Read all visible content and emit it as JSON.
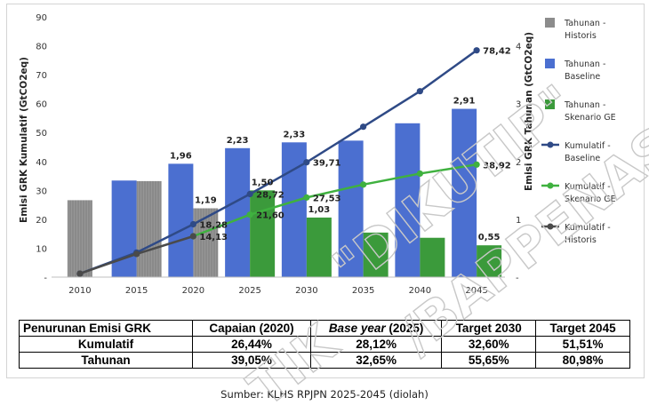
{
  "chart_data": {
    "type": "bar+line",
    "categories": [
      "2010",
      "2015",
      "2020",
      "2025",
      "2030",
      "2035",
      "2040",
      "2045"
    ],
    "y_left": {
      "title": "Emisi GRK Kumulatif (GtCO2eq)",
      "range": [
        0,
        90
      ],
      "ticks": [
        "-",
        "10",
        "20",
        "30",
        "40",
        "50",
        "60",
        "70",
        "80",
        "90"
      ]
    },
    "y_right": {
      "title": "Emisi GRK Tahunan (GtCO2eq)",
      "range": [
        0,
        4.5
      ],
      "ticks": [
        "-",
        "1",
        "2",
        "3",
        "4"
      ]
    },
    "bar_series": [
      {
        "name": "Tahunan - Historis",
        "color": "#8c8c8c",
        "values": [
          1.33,
          1.66,
          1.19,
          null,
          null,
          null,
          null,
          null
        ]
      },
      {
        "name": "Tahunan - Baseline",
        "color": "#4b6fd0",
        "values": [
          null,
          1.67,
          1.96,
          2.23,
          2.33,
          2.36,
          2.66,
          2.91
        ]
      },
      {
        "name": "Tahunan - Skenario GE",
        "color": "#3b9a3b",
        "values": [
          null,
          null,
          null,
          1.5,
          1.03,
          0.77,
          0.68,
          0.55
        ]
      }
    ],
    "line_series": [
      {
        "name": "Kumulatif - Baseline",
        "color": "#2f4a86",
        "values": [
          1.2,
          8.5,
          18.28,
          28.72,
          39.71,
          52.0,
          64.3,
          78.42
        ]
      },
      {
        "name": "Kumulatif - Skenario GE",
        "color": "#3fb13f",
        "values": [
          null,
          null,
          14.13,
          21.6,
          27.53,
          32.0,
          35.8,
          38.92
        ]
      },
      {
        "name": "Kumulatif - Historis",
        "color": "#4a4a4a",
        "values": [
          1.2,
          8.0,
          14.13,
          null,
          null,
          null,
          null,
          null
        ]
      }
    ],
    "bar_labels": [
      {
        "series": 1,
        "index": 2,
        "text": "1,96"
      },
      {
        "series": 1,
        "index": 3,
        "text": "2,23"
      },
      {
        "series": 1,
        "index": 4,
        "text": "2,33"
      },
      {
        "series": 1,
        "index": 7,
        "text": "2,91"
      },
      {
        "series": 0,
        "index": 2,
        "text": "1,19"
      },
      {
        "series": 2,
        "index": 3,
        "text": "1,50"
      },
      {
        "series": 2,
        "index": 4,
        "text": "1,03"
      },
      {
        "series": 2,
        "index": 7,
        "text": "0,55"
      }
    ],
    "line_labels": [
      {
        "series": 0,
        "index": 2,
        "text": "18,28"
      },
      {
        "series": 0,
        "index": 3,
        "text": "28,72"
      },
      {
        "series": 0,
        "index": 4,
        "text": "39,71"
      },
      {
        "series": 0,
        "index": 7,
        "text": "78,42"
      },
      {
        "series": 1,
        "index": 2,
        "text": "14,13"
      },
      {
        "series": 1,
        "index": 3,
        "text": "21,60"
      },
      {
        "series": 1,
        "index": 4,
        "text": "27,53"
      },
      {
        "series": 1,
        "index": 7,
        "text": "38,92"
      }
    ],
    "legend": [
      {
        "name": "Tahunan - Historis",
        "kind": "bar",
        "color": "#8c8c8c"
      },
      {
        "name": "Tahunan - Baseline",
        "kind": "bar",
        "color": "#4b6fd0"
      },
      {
        "name": "Tahunan - Skenario GE",
        "kind": "bar",
        "color": "#3b9a3b"
      },
      {
        "name": "Kumulatif - Baseline",
        "kind": "line",
        "color": "#2f4a86"
      },
      {
        "name": "Kumulatif - Skenario GE",
        "kind": "line",
        "color": "#3fb13f"
      },
      {
        "name": "Kumulatif - Historis",
        "kind": "line",
        "color": "#4a4a4a"
      }
    ],
    "legend_position": "right",
    "grid": false
  },
  "table": {
    "header": [
      "Penurunan Emisi GRK",
      "Capaian (2020)",
      "Base year",
      "(2025)",
      "Target 2030",
      "Target 2045"
    ],
    "rows": [
      [
        "Kumulatif",
        "26,44%",
        "28,12%",
        "32,60%",
        "51,51%"
      ],
      [
        "Tahunan",
        "39,05%",
        "32,65%",
        "55,65%",
        "80,98%"
      ]
    ]
  },
  "source": "Sumber: KLHS RPJPN 2025-2045 (diolah)",
  "watermark": [
    "\"DIKUTIP\"",
    "/BAPPENAS",
    "TIK"
  ]
}
